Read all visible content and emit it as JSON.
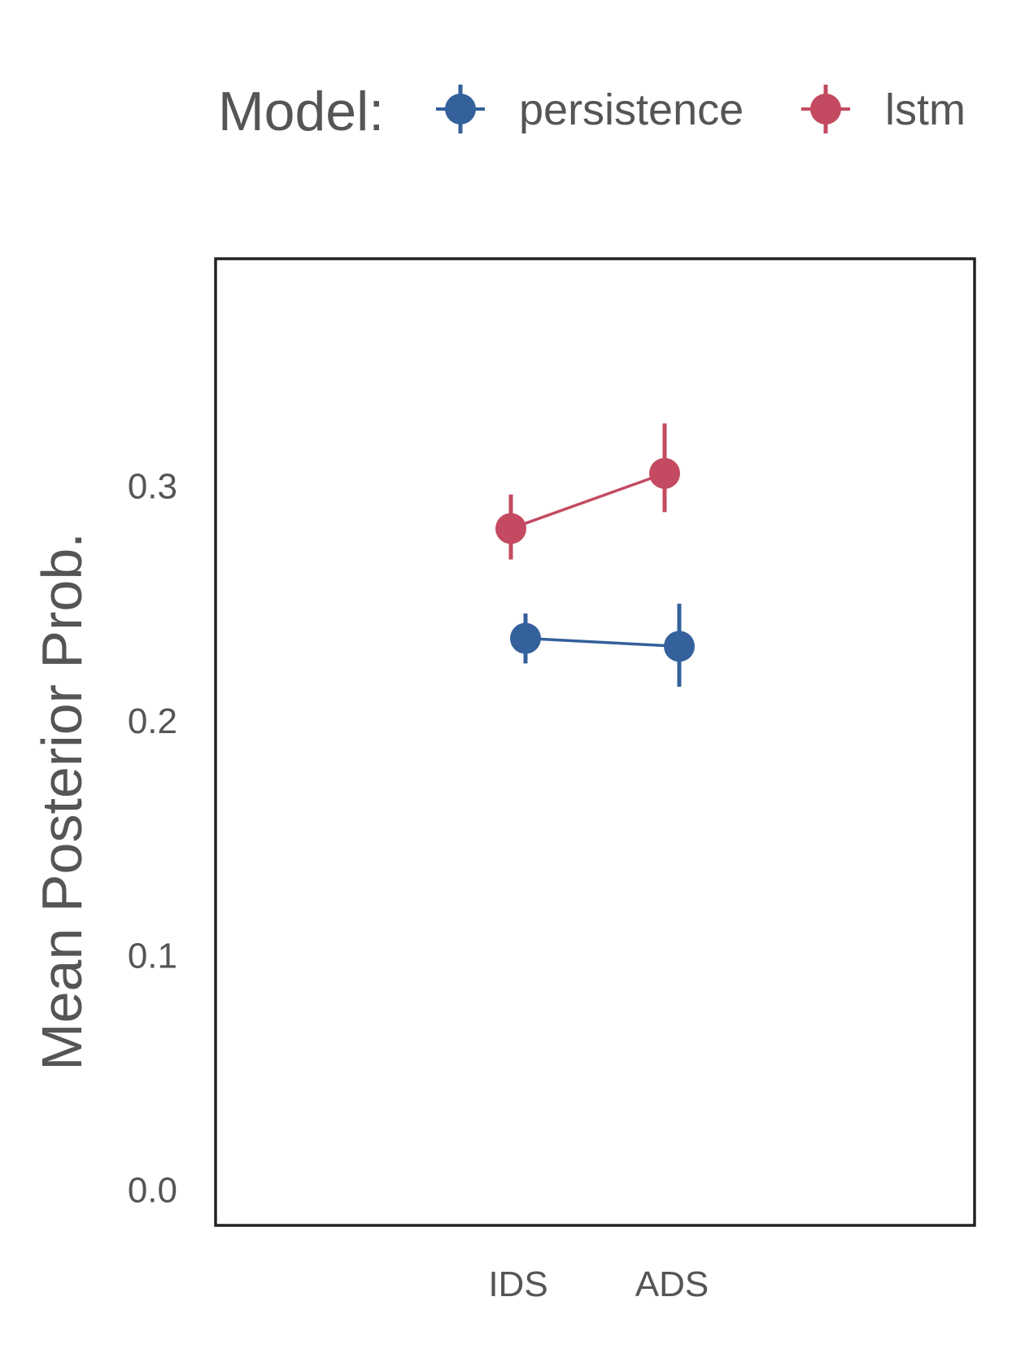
{
  "chart_data": {
    "type": "line",
    "title": "",
    "xlabel": "",
    "ylabel": "Mean Posterior Prob.",
    "categories": [
      "IDS",
      "ADS"
    ],
    "yticks": [
      "0.0",
      "0.1",
      "0.2",
      "0.3"
    ],
    "ytick_values": [
      0.0,
      0.1,
      0.2,
      0.3
    ],
    "ylim": [
      -0.015,
      0.397
    ],
    "grid": false,
    "legend": {
      "title": "Model:",
      "placement": "top",
      "entries": [
        "persistence",
        "lstm"
      ]
    },
    "series": [
      {
        "name": "persistence",
        "color": "#34609b",
        "values": [
          0.2352,
          0.2318
        ],
        "lower": [
          0.2245,
          0.2146
        ],
        "upper": [
          0.2458,
          0.25
        ]
      },
      {
        "name": "lstm",
        "color": "#c34a60",
        "values": [
          0.282,
          0.3055
        ],
        "lower": [
          0.2688,
          0.289
        ],
        "upper": [
          0.2965,
          0.3268
        ]
      }
    ]
  }
}
